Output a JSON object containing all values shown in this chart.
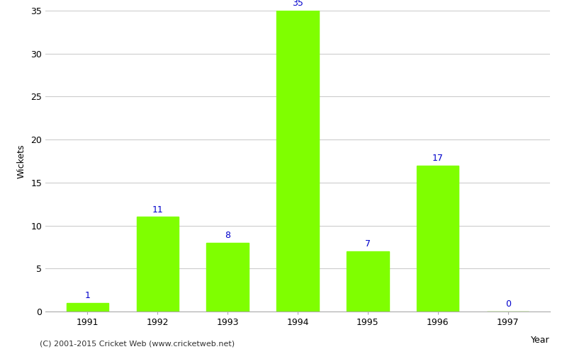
{
  "years": [
    "1991",
    "1992",
    "1993",
    "1994",
    "1995",
    "1996",
    "1997"
  ],
  "values": [
    1,
    11,
    8,
    35,
    7,
    17,
    0
  ],
  "bar_color": "#7fff00",
  "bar_edge_color": "#7fff00",
  "label_color": "#0000cc",
  "xlabel": "Year",
  "ylabel": "Wickets",
  "ylim": [
    0,
    35
  ],
  "yticks": [
    0,
    5,
    10,
    15,
    20,
    25,
    30,
    35
  ],
  "footnote": "(C) 2001-2015 Cricket Web (www.cricketweb.net)",
  "label_fontsize": 9,
  "axis_label_fontsize": 9,
  "tick_fontsize": 9,
  "footnote_fontsize": 8,
  "bar_width": 0.6
}
